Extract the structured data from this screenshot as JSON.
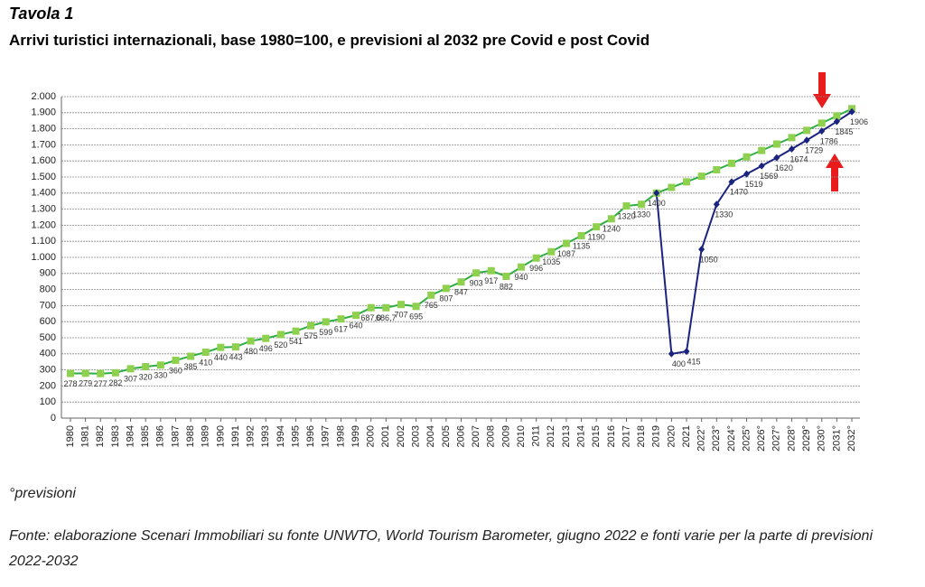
{
  "header": {
    "label": "Tavola 1"
  },
  "chart_data": {
    "type": "line",
    "title": "Arrivi turistici internazionali, base 1980=100, e previsioni al 2032 pre Covid e post Covid",
    "categories": [
      "1980",
      "1981",
      "1982",
      "1983",
      "1984",
      "1985",
      "1986",
      "1987",
      "1988",
      "1989",
      "1990",
      "1991",
      "1992",
      "1993",
      "1994",
      "1995",
      "1996",
      "1997",
      "1998",
      "1999",
      "2000",
      "2001",
      "2002",
      "2003",
      "2004",
      "2005",
      "2006",
      "2007",
      "2008",
      "2009",
      "2010",
      "2011",
      "2012",
      "2013",
      "2014",
      "2015",
      "2016",
      "2017",
      "2018",
      "2019",
      "2020",
      "2021",
      "2022°",
      "2023°",
      "2024°",
      "2025°",
      "2026°",
      "2027°",
      "2028°",
      "2029°",
      "2030°",
      "2031°",
      "2032°"
    ],
    "series": [
      {
        "color": "#2fae44",
        "marker_color": "#8fd14f",
        "marker": "square",
        "values": [
          278,
          279,
          277,
          282,
          307,
          320,
          330,
          360,
          385,
          410,
          440,
          443,
          480,
          496,
          520,
          541,
          575,
          599,
          617,
          640,
          687.0,
          686.7,
          707,
          695,
          765,
          807,
          847,
          903,
          917,
          882,
          940,
          996,
          1035,
          1087,
          1135,
          1190,
          1240,
          1320,
          1330,
          1400,
          1435,
          1470,
          1505,
          1545,
          1585,
          1625,
          1665,
          1705,
          1745,
          1790,
          1835,
          1880,
          1925
        ],
        "value_labels": [
          "278",
          "279",
          "277",
          "282",
          "307",
          "320",
          "330",
          "360",
          "385",
          "410",
          "440",
          "443",
          "480",
          "496",
          "520",
          "541",
          "575",
          "599",
          "617",
          "640",
          "687,0",
          "686,7",
          "707",
          "695",
          "765",
          "807",
          "847",
          "903",
          "917",
          "882",
          "940",
          "996",
          "1035",
          "1087",
          "1135",
          "1190",
          "1240",
          "1320",
          "1330",
          "1400",
          null,
          null,
          null,
          null,
          null,
          null,
          null,
          null,
          null,
          null,
          null,
          null,
          null
        ]
      },
      {
        "color": "#1a2380",
        "marker_color": "#1a2380",
        "marker": "diamond",
        "values": [
          null,
          null,
          null,
          null,
          null,
          null,
          null,
          null,
          null,
          null,
          null,
          null,
          null,
          null,
          null,
          null,
          null,
          null,
          null,
          null,
          null,
          null,
          null,
          null,
          null,
          null,
          null,
          null,
          null,
          null,
          null,
          null,
          null,
          null,
          null,
          null,
          null,
          null,
          null,
          1400,
          400,
          415,
          1050,
          1330,
          1470,
          1519,
          1569,
          1620,
          1674,
          1729,
          1786,
          1845,
          1906
        ],
        "value_labels": [
          null,
          null,
          null,
          null,
          null,
          null,
          null,
          null,
          null,
          null,
          null,
          null,
          null,
          null,
          null,
          null,
          null,
          null,
          null,
          null,
          null,
          null,
          null,
          null,
          null,
          null,
          null,
          null,
          null,
          null,
          null,
          null,
          null,
          null,
          null,
          null,
          null,
          null,
          null,
          null,
          "400",
          "415",
          "1050",
          "1330",
          "1470",
          "1519",
          "1569",
          "1620",
          "1674",
          "1729",
          "1786",
          "1845",
          "1906"
        ]
      }
    ],
    "ylim": [
      0,
      2000
    ],
    "yticks": [
      0,
      100,
      200,
      300,
      400,
      500,
      600,
      700,
      800,
      900,
      {
        "value": 1000,
        "label": "1.000"
      },
      {
        "value": 1100,
        "label": "1.100"
      },
      {
        "value": 1200,
        "label": "1.200"
      },
      {
        "value": 1300,
        "label": "1.300"
      },
      {
        "value": 1400,
        "label": "1.400"
      },
      {
        "value": 1500,
        "label": "1.500"
      },
      {
        "value": 1600,
        "label": "1.600"
      },
      {
        "value": 1700,
        "label": "1.700"
      },
      {
        "value": 1800,
        "label": "1.800"
      },
      {
        "value": 1900,
        "label": "1.900"
      },
      {
        "value": 2000,
        "label": "2.000"
      }
    ],
    "grid": true
  },
  "notes": {
    "legend": "°previsioni",
    "source": "Fonte: elaborazione Scenari Immobiliari su fonte UNWTO, World Tourism Barometer, giugno 2022 e fonti varie per la parte di previsioni 2022-2032"
  }
}
